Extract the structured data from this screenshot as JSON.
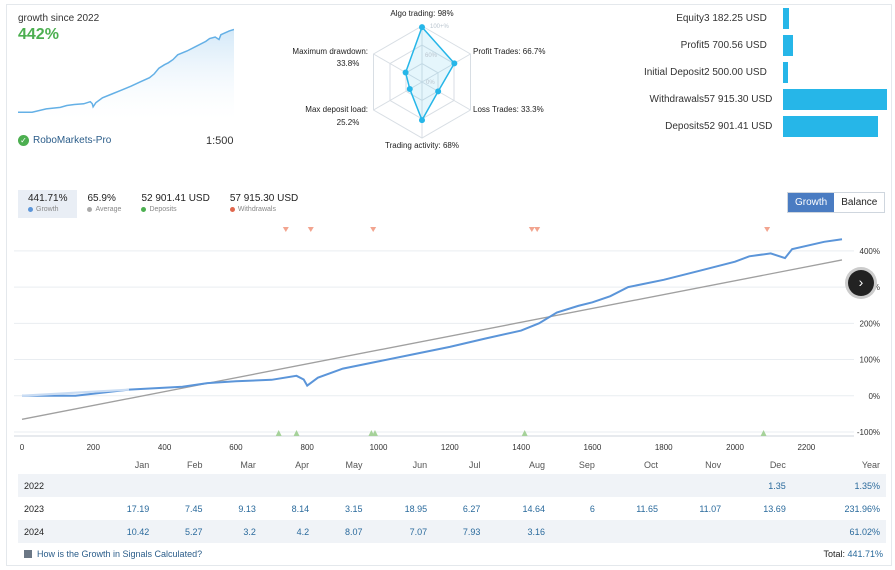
{
  "header": {
    "growth_label": "growth since 2022",
    "growth_value": "442%",
    "broker": "RoboMarkets-Pro",
    "leverage": "1:500"
  },
  "radar": {
    "algo": "Algo trading: 98%",
    "profit": "Profit Trades: 66.7%",
    "loss": "Loss Trades: 33.3%",
    "activity": "Trading activity: 68%",
    "load1": "Max deposit load:",
    "load2": "25.2%",
    "dd1": "Maximum drawdown:",
    "dd2": "33.8%",
    "ring100": "100+%",
    "ring60": "60%",
    "ring0": "0%",
    "values": [
      98,
      66.7,
      33.3,
      68,
      25.2,
      33.8
    ]
  },
  "stats": [
    {
      "label": "Equity",
      "value": "3 182.25 USD",
      "fraction": 0.055
    },
    {
      "label": "Profit",
      "value": "5 700.56 USD",
      "fraction": 0.098
    },
    {
      "label": "Initial Deposit",
      "value": "2 500.00 USD",
      "fraction": 0.043
    },
    {
      "label": "Withdrawals",
      "value": "57 915.30 USD",
      "fraction": 1.0
    },
    {
      "label": "Deposits",
      "value": "52 901.41 USD",
      "fraction": 0.913
    }
  ],
  "summary": {
    "growth_value": "441.71%",
    "growth_label": "Growth",
    "average_value": "65.9%",
    "average_label": "Average",
    "deposits_value": "52 901.41 USD",
    "deposits_label": "Deposits",
    "withdrawals_value": "57 915.30 USD",
    "withdrawals_label": "Withdrawals"
  },
  "toggle": {
    "growth": "Growth",
    "balance": "Balance"
  },
  "colors": {
    "growth_line": "#5b95d9",
    "trend_line": "#a0a0a0",
    "green": "#4caf50",
    "bar": "#26b6e8",
    "withdrawal_marker": "#f2a48f",
    "deposit_marker": "#a6d29a"
  },
  "chart_data": {
    "type": "line",
    "x_ticks": [
      "0",
      "200",
      "400",
      "600",
      "800",
      "1000",
      "1200",
      "1400",
      "1600",
      "1800",
      "2000",
      "2200"
    ],
    "y_ticks": [
      "-100%",
      "0%",
      "100%",
      "200%",
      "300%",
      "400%"
    ],
    "xlim": [
      0,
      2300
    ],
    "ylim": [
      -100,
      430
    ],
    "growth": [
      [
        0,
        0
      ],
      [
        150,
        0
      ],
      [
        300,
        17
      ],
      [
        450,
        25
      ],
      [
        520,
        35
      ],
      [
        600,
        40
      ],
      [
        700,
        44
      ],
      [
        770,
        55
      ],
      [
        790,
        45
      ],
      [
        800,
        28
      ],
      [
        830,
        50
      ],
      [
        900,
        75
      ],
      [
        1000,
        95
      ],
      [
        1100,
        115
      ],
      [
        1200,
        135
      ],
      [
        1300,
        158
      ],
      [
        1400,
        180
      ],
      [
        1450,
        200
      ],
      [
        1500,
        230
      ],
      [
        1560,
        248
      ],
      [
        1600,
        258
      ],
      [
        1650,
        275
      ],
      [
        1700,
        300
      ],
      [
        1800,
        320
      ],
      [
        1900,
        345
      ],
      [
        2000,
        370
      ],
      [
        2040,
        385
      ],
      [
        2100,
        393
      ],
      [
        2140,
        380
      ],
      [
        2160,
        405
      ],
      [
        2250,
        425
      ],
      [
        2300,
        432
      ]
    ],
    "trend": [
      [
        0,
        -65
      ],
      [
        2300,
        375
      ]
    ],
    "withdrawals_x": [
      740,
      810,
      985,
      1430,
      1445,
      2090
    ],
    "deposits_x": [
      720,
      770,
      980,
      990,
      1410,
      2080
    ]
  },
  "table": {
    "headers": [
      "Jan",
      "Feb",
      "Mar",
      "Apr",
      "May",
      "Jun",
      "Jul",
      "Aug",
      "Sep",
      "Oct",
      "Nov",
      "Dec",
      "Year"
    ],
    "rows": [
      {
        "year": "2022",
        "cells": [
          "",
          "",
          "",
          "",
          "",
          "",
          "",
          "",
          "",
          "",
          "",
          "1.35",
          "1.35%"
        ]
      },
      {
        "year": "2023",
        "cells": [
          "17.19",
          "7.45",
          "9.13",
          "8.14",
          "3.15",
          "18.95",
          "6.27",
          "14.64",
          "6",
          "11.65",
          "11.07",
          "13.69",
          "231.96%"
        ]
      },
      {
        "year": "2024",
        "cells": [
          "10.42",
          "5.27",
          "3.2",
          "4.2",
          "8.07",
          "7.07",
          "7.93",
          "3.16",
          "",
          "",
          "",
          "",
          "61.02%"
        ]
      }
    ]
  },
  "footer": {
    "link": "How is the Growth in Signals Calculated?",
    "total_label": "Total:",
    "total_value": "441.71%"
  }
}
